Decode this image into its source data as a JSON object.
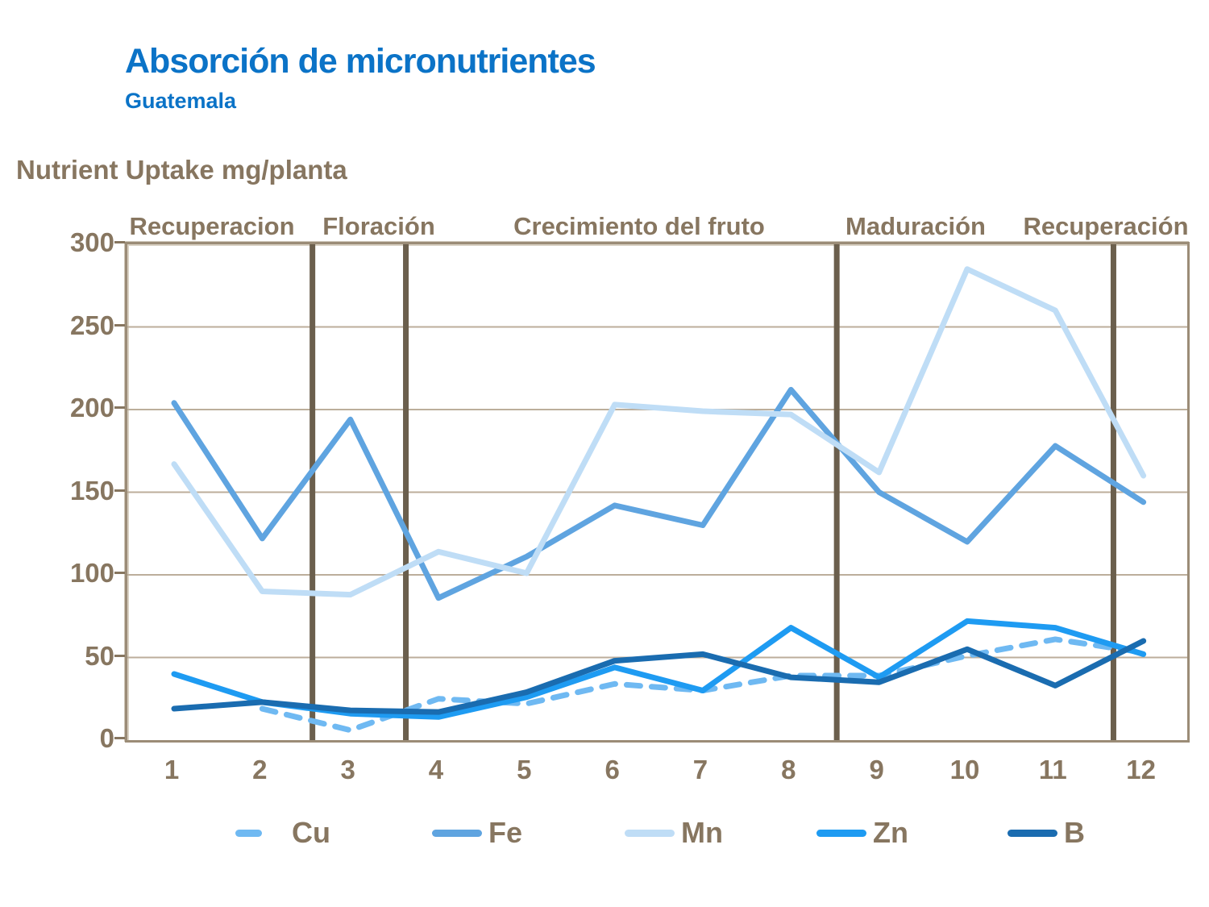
{
  "header": {
    "title": "Absorción de micronutrientes",
    "subtitle": "Guatemala"
  },
  "colors": {
    "title_blue": "#0B73C7",
    "text_brown": "#877660",
    "gridline": "#BCAE9B",
    "phase_divider": "#6B5F4D",
    "plot_border": "#9B8C77"
  },
  "chart_data": {
    "type": "line",
    "title": "Absorción de micronutrientes",
    "subtitle": "Guatemala",
    "ylabel": "Nutrient Uptake mg/planta",
    "xlabel": "",
    "categories": [
      1,
      2,
      3,
      4,
      5,
      6,
      7,
      8,
      9,
      10,
      11,
      12
    ],
    "y_ticks": [
      0,
      50,
      100,
      150,
      200,
      250,
      300
    ],
    "ylim": [
      0,
      300
    ],
    "grid": true,
    "legend_position": "bottom",
    "phases": [
      {
        "label": "Recuperacion"
      },
      {
        "label": "Floración"
      },
      {
        "label": "Crecimiento del fruto"
      },
      {
        "label": "Maduración"
      },
      {
        "label": "Recuperación"
      }
    ],
    "phase_divider_x": [
      2.57,
      3.63,
      8.52,
      11.66
    ],
    "series": [
      {
        "name": "Cu",
        "color": "#6FB9F2",
        "dashed": true,
        "values": [
          null,
          19,
          6,
          25,
          22,
          34,
          30,
          39,
          39,
          51,
          61,
          53
        ]
      },
      {
        "name": "Fe",
        "color": "#5FA4E0",
        "dashed": false,
        "values": [
          204,
          122,
          194,
          86,
          111,
          142,
          130,
          212,
          150,
          120,
          178,
          144
        ]
      },
      {
        "name": "Mn",
        "color": "#BFDDF6",
        "dashed": false,
        "values": [
          167,
          90,
          88,
          114,
          101,
          203,
          199,
          197,
          162,
          285,
          260,
          160
        ]
      },
      {
        "name": "Zn",
        "color": "#1E9BF2",
        "dashed": false,
        "values": [
          40,
          23,
          16,
          14,
          26,
          44,
          30,
          68,
          38,
          72,
          68,
          52
        ]
      },
      {
        "name": "B",
        "color": "#1A6CB0",
        "dashed": false,
        "values": [
          19,
          23,
          18,
          17,
          29,
          48,
          52,
          38,
          35,
          55,
          33,
          60
        ]
      }
    ]
  }
}
